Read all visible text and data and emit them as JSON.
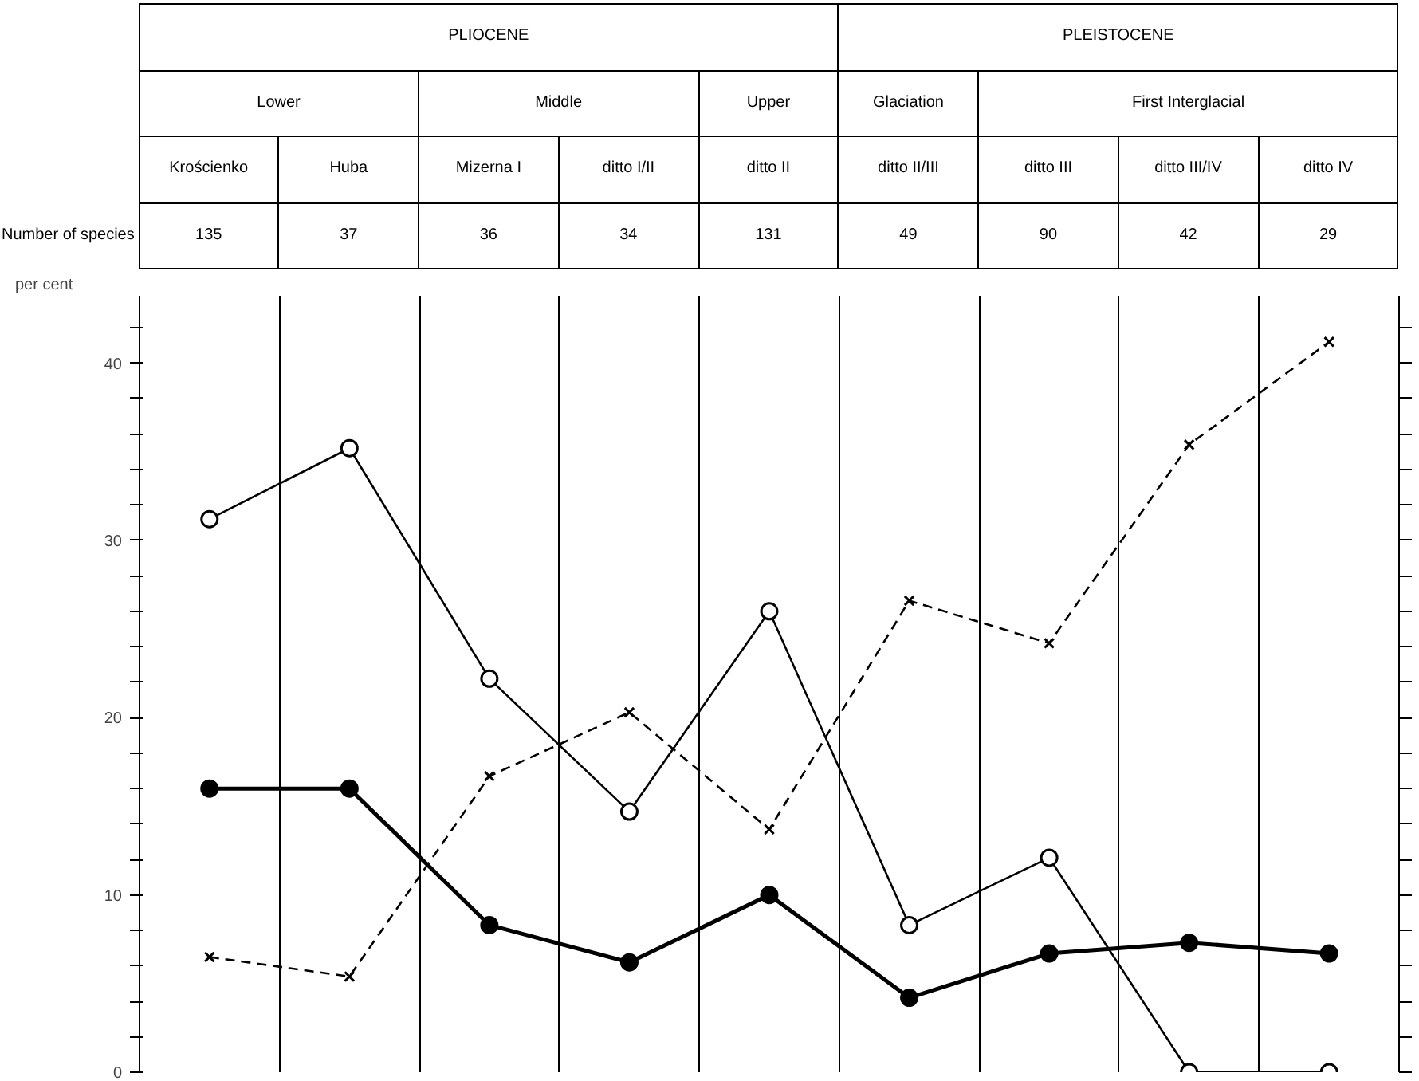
{
  "chart_data": {
    "type": "line",
    "ylabel": "per cent",
    "categories": [
      "Krościenko",
      "Huba",
      "Mizerna I",
      "ditto I/II",
      "ditto II",
      "ditto II/III",
      "ditto III",
      "ditto III/IV",
      "ditto IV"
    ],
    "annotations": [
      "PLIOCENE",
      "PLEISTOCENE",
      "Lower",
      "Middle",
      "Upper",
      "Glaciation",
      "First Interglacial",
      "Number of species",
      "135",
      "37",
      "36",
      "34",
      "131",
      "49",
      "90",
      "42",
      "29"
    ],
    "series": [
      {
        "color": "#000000",
        "colors": [
          "#ffffff",
          "#ffffff",
          "#ffffff",
          "#ffffff",
          "#ffffff",
          "#ffffff",
          "#ffffff",
          "#ffffff",
          "#ffffff"
        ],
        "marker": "circle",
        "line_style": "solid",
        "values": [
          31.2,
          35.2,
          22.2,
          14.7,
          26.0,
          8.3,
          12.1,
          0,
          0
        ]
      },
      {
        "color": "#000000",
        "marker": "circle",
        "line_style": "solid",
        "values": [
          16.0,
          16.0,
          8.3,
          6.2,
          10.0,
          4.2,
          6.7,
          7.3,
          6.7
        ]
      },
      {
        "color": "#000000",
        "marker": "cross",
        "line_style": "dashed",
        "values": [
          6.5,
          5.4,
          16.7,
          20.3,
          13.7,
          26.6,
          24.2,
          35.4,
          41.2
        ]
      }
    ],
    "ylim": [
      0,
      43.8
    ],
    "yticks": [
      0,
      {
        "value": 2,
        "label": null
      },
      {
        "value": 4,
        "label": null
      },
      {
        "value": 6,
        "label": null
      },
      {
        "value": 8,
        "label": null
      },
      10,
      {
        "value": 12,
        "label": null
      },
      {
        "value": 14,
        "label": null
      },
      {
        "value": 16,
        "label": null
      },
      {
        "value": 18,
        "label": null
      },
      20,
      {
        "value": 22,
        "label": null
      },
      {
        "value": 24,
        "label": null
      },
      {
        "value": 26,
        "label": null
      },
      {
        "value": 28,
        "label": null
      },
      30,
      {
        "value": 32,
        "label": null
      },
      {
        "value": 34,
        "label": null
      },
      {
        "value": 36,
        "label": null
      },
      {
        "value": 38,
        "label": null
      },
      40,
      {
        "value": 42,
        "label": null
      }
    ],
    "grid": "x"
  }
}
